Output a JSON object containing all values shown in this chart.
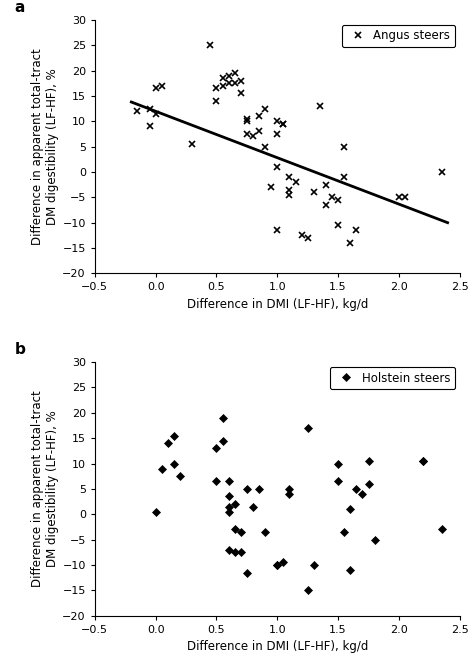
{
  "panel_a": {
    "x": [
      -0.15,
      -0.05,
      -0.05,
      0.0,
      0.0,
      0.05,
      0.3,
      0.45,
      0.5,
      0.5,
      0.55,
      0.55,
      0.6,
      0.6,
      0.65,
      0.65,
      0.7,
      0.7,
      0.75,
      0.75,
      0.75,
      0.8,
      0.85,
      0.85,
      0.9,
      0.9,
      0.95,
      1.0,
      1.0,
      1.0,
      1.0,
      1.05,
      1.05,
      1.1,
      1.1,
      1.1,
      1.15,
      1.2,
      1.25,
      1.3,
      1.35,
      1.4,
      1.4,
      1.45,
      1.5,
      1.5,
      1.55,
      1.55,
      1.6,
      1.65,
      2.0,
      2.05,
      2.35
    ],
    "y": [
      12.0,
      9.0,
      12.5,
      11.5,
      16.5,
      17.0,
      5.5,
      25.0,
      14.0,
      16.5,
      17.0,
      18.5,
      17.5,
      19.0,
      17.5,
      19.5,
      15.5,
      18.0,
      10.5,
      10.0,
      7.5,
      7.0,
      8.0,
      11.0,
      5.0,
      12.5,
      -3.0,
      -11.5,
      1.0,
      7.5,
      10.0,
      9.5,
      9.5,
      -1.0,
      -3.5,
      -4.5,
      -2.0,
      -12.5,
      -13.0,
      -4.0,
      13.0,
      -2.5,
      -6.5,
      -5.0,
      -5.5,
      -10.5,
      -1.0,
      5.0,
      -14.0,
      -11.5,
      -5.0,
      -5.0,
      0.0
    ],
    "trendline_x": [
      -0.2,
      2.4
    ],
    "trendline_y": [
      13.8,
      -10.0
    ],
    "xlabel": "Difference in DMI (LF-HF), kg/d",
    "ylabel": "Difference in apparent total-tract\nDM digestibility (LF-HF), %",
    "xlim": [
      -0.5,
      2.5
    ],
    "ylim": [
      -20,
      30
    ],
    "yticks": [
      -20,
      -15,
      -10,
      -5,
      0,
      5,
      10,
      15,
      20,
      25,
      30
    ],
    "xticks": [
      -0.5,
      0.0,
      0.5,
      1.0,
      1.5,
      2.0,
      2.5
    ],
    "legend_label": "Angus steers",
    "marker": "x",
    "panel_label": "a"
  },
  "panel_b": {
    "x": [
      0.0,
      0.05,
      0.1,
      0.15,
      0.15,
      0.2,
      0.5,
      0.5,
      0.55,
      0.55,
      0.6,
      0.6,
      0.6,
      0.6,
      0.6,
      0.65,
      0.65,
      0.65,
      0.7,
      0.7,
      0.75,
      0.75,
      0.8,
      0.85,
      0.9,
      1.0,
      1.0,
      1.05,
      1.1,
      1.1,
      1.25,
      1.25,
      1.3,
      1.5,
      1.5,
      1.55,
      1.6,
      1.6,
      1.65,
      1.7,
      1.75,
      1.75,
      1.8,
      2.2,
      2.2,
      2.35
    ],
    "y": [
      0.5,
      9.0,
      14.0,
      15.5,
      10.0,
      7.5,
      13.0,
      6.5,
      14.5,
      19.0,
      3.5,
      6.5,
      1.5,
      0.5,
      -7.0,
      2.0,
      -3.0,
      -7.5,
      -3.5,
      -7.5,
      -11.5,
      5.0,
      1.5,
      5.0,
      -3.5,
      -10.0,
      -10.0,
      -9.5,
      5.0,
      4.0,
      17.0,
      -15.0,
      -10.0,
      10.0,
      6.5,
      -3.5,
      1.0,
      -11.0,
      5.0,
      4.0,
      6.0,
      10.5,
      -5.0,
      10.5,
      10.5,
      -3.0
    ],
    "xlabel": "Difference in DMI (LF-HF), kg/d",
    "ylabel": "Difference in apparent total-tract\nDM digestibility (LF-HF), %",
    "xlim": [
      -0.5,
      2.5
    ],
    "ylim": [
      -20,
      30
    ],
    "yticks": [
      -20,
      -15,
      -10,
      -5,
      0,
      5,
      10,
      15,
      20,
      25,
      30
    ],
    "xticks": [
      -0.5,
      0.0,
      0.5,
      1.0,
      1.5,
      2.0,
      2.5
    ],
    "legend_label": "Holstein steers",
    "marker": "D",
    "panel_label": "b"
  },
  "figure_bg": "#ffffff",
  "text_color": "#000000",
  "marker_color": "#000000",
  "line_color": "#000000",
  "fontsize_label": 8.5,
  "fontsize_tick": 8,
  "fontsize_panel": 11,
  "fontsize_legend": 8.5
}
